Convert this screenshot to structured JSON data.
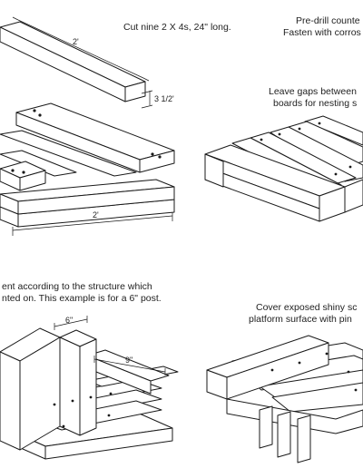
{
  "captions": {
    "top_left": "Cut nine 2 X 4s, 24\" long.",
    "top_right_1": "Pre-drill counte",
    "top_right_2": "Fasten with corros",
    "mid_right_1": "Leave gaps between",
    "mid_right_2": "boards for nesting s",
    "bottom_left_1": "ent according to the structure which",
    "bottom_left_2": "nted on.  This example is for a 6\" post.",
    "bottom_right_1": "Cover exposed shiny sc",
    "bottom_right_2": "platform surface with pin"
  },
  "dimensions": {
    "board_length": "2'",
    "board_width": "3 1/2'",
    "frame_length": "2'",
    "post_gap": "6\"",
    "side_length": "9\""
  },
  "colors": {
    "line": "#1a1a1a",
    "paper": "#ffffff"
  }
}
